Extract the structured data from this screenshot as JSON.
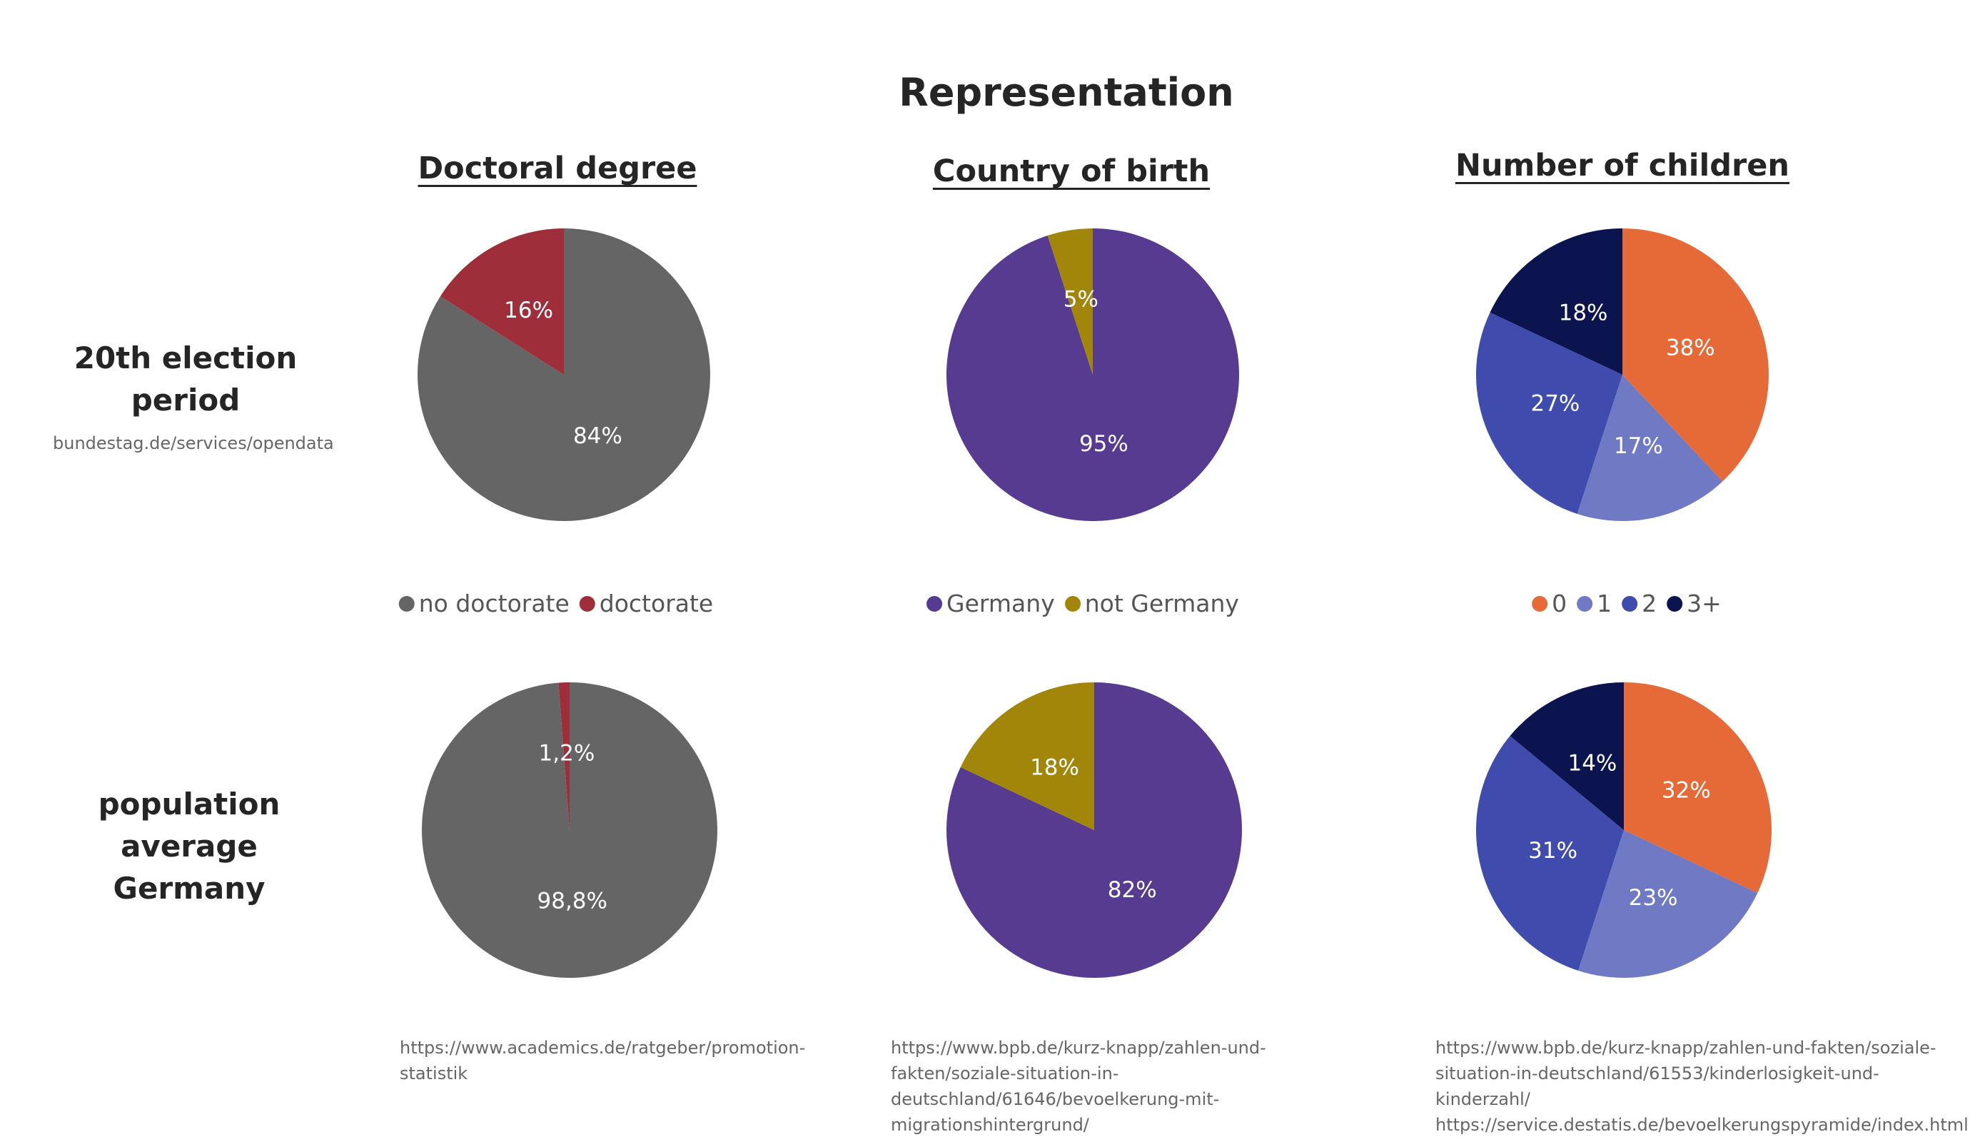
{
  "title": "Representation",
  "columns": [
    {
      "title": "Doctoral degree",
      "legend": [
        {
          "label": "no doctorate",
          "color": "#656565"
        },
        {
          "label": "doctorate",
          "color": "#9E2F3A"
        }
      ],
      "source": "https://www.academics.de/ratgeber/promotion-statistik"
    },
    {
      "title": "Country of birth",
      "legend": [
        {
          "label": "Germany",
          "color": "#563B90"
        },
        {
          "label": "not Germany",
          "color": "#A2860A"
        }
      ],
      "source": "https://www.bpb.de/kurz-knapp/zahlen-und-fakten/soziale-situation-in-deutschland/61646/bevoelkerung-mit-migrationshintergrund/"
    },
    {
      "title": "Number of children",
      "legend": [
        {
          "label": "0",
          "color": "#E56A37"
        },
        {
          "label": "1",
          "color": "#7079C4"
        },
        {
          "label": "2",
          "color": "#3F4CAD"
        },
        {
          "label": "3+",
          "color": "#0C1450"
        }
      ],
      "source": "https://www.bpb.de/kurz-knapp/zahlen-und-fakten/soziale-situation-in-deutschland/61553/kinderlosigkeit-und-kinderzahl/ https://service.destatis.de/bevoelkerungspyramide/index.html"
    }
  ],
  "rows": [
    {
      "title": "20th election period",
      "source": "bundestag.de/services/opendata"
    },
    {
      "title": "population average Germany",
      "source": ""
    }
  ],
  "chart_data": [
    {
      "type": "pie",
      "title": "Doctoral degree",
      "subtitle": "20th election period",
      "categories": [
        "no doctorate",
        "doctorate"
      ],
      "values": [
        84,
        16
      ],
      "labels": [
        "84%",
        "16%"
      ],
      "colors": [
        "#656565",
        "#9E2F3A"
      ]
    },
    {
      "type": "pie",
      "title": "Country of birth",
      "subtitle": "20th election period",
      "categories": [
        "Germany",
        "not Germany"
      ],
      "values": [
        95,
        5
      ],
      "labels": [
        "95%",
        "5%"
      ],
      "colors": [
        "#563B90",
        "#A2860A"
      ]
    },
    {
      "type": "pie",
      "title": "Number of children",
      "subtitle": "20th election period",
      "categories": [
        "0",
        "1",
        "2",
        "3+"
      ],
      "values": [
        38,
        17,
        27,
        18
      ],
      "labels": [
        "38%",
        "17%",
        "27%",
        "18%"
      ],
      "colors": [
        "#E56A37",
        "#7079C4",
        "#3F4CAD",
        "#0C1450"
      ]
    },
    {
      "type": "pie",
      "title": "Doctoral degree",
      "subtitle": "population average Germany",
      "categories": [
        "no doctorate",
        "doctorate"
      ],
      "values": [
        98.8,
        1.2
      ],
      "labels": [
        "98,8%",
        "1,2%"
      ],
      "colors": [
        "#656565",
        "#9E2F3A"
      ]
    },
    {
      "type": "pie",
      "title": "Country of birth",
      "subtitle": "population average Germany",
      "categories": [
        "Germany",
        "not Germany"
      ],
      "values": [
        82,
        18
      ],
      "labels": [
        "82%",
        "18%"
      ],
      "colors": [
        "#563B90",
        "#A2860A"
      ]
    },
    {
      "type": "pie",
      "title": "Number of children",
      "subtitle": "population average Germany",
      "categories": [
        "0",
        "1",
        "2",
        "3+"
      ],
      "values": [
        32,
        23,
        31,
        14
      ],
      "labels": [
        "32%",
        "23%",
        "31%",
        "14%"
      ],
      "colors": [
        "#E56A37",
        "#7079C4",
        "#3F4CAD",
        "#0C1450"
      ]
    }
  ]
}
